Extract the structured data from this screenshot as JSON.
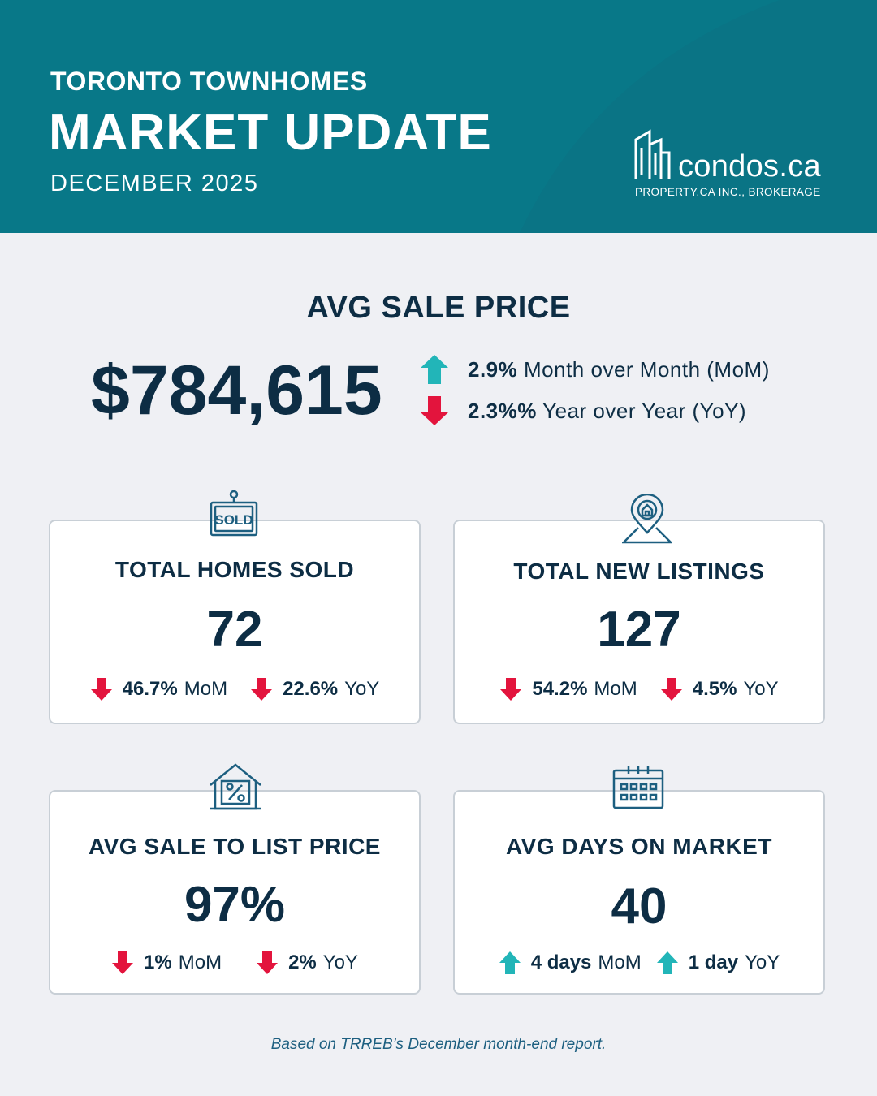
{
  "header": {
    "subtitle": "TORONTO TOWNHOMES",
    "title": "MARKET UPDATE",
    "date": "DECEMBER 2025",
    "bg_color": "#087888"
  },
  "logo": {
    "name": "condos.ca",
    "tagline": "PROPERTY.CA INC., BROKERAGE",
    "icon": "buildings-icon"
  },
  "avg_sale_price": {
    "title": "AVG SALE PRICE",
    "value": "$784,615",
    "mom": {
      "value": "2.9%",
      "label": "Month over Month (MoM)",
      "direction": "up"
    },
    "yoy": {
      "value": "2.3%%",
      "label": "Year over Year (YoY)",
      "direction": "down"
    }
  },
  "colors": {
    "up": "#22b5b8",
    "down": "#e3143d",
    "text": "#0d2d44"
  },
  "cards": {
    "homes_sold": {
      "icon": "sold-sign-icon",
      "title": "TOTAL HOMES SOLD",
      "value": "72",
      "mom": {
        "value": "46.7%",
        "label": "MoM",
        "direction": "down"
      },
      "yoy": {
        "value": "22.6%",
        "label": "YoY",
        "direction": "down"
      }
    },
    "new_listings": {
      "icon": "house-pin-icon",
      "title": "TOTAL NEW LISTINGS",
      "value": "127",
      "mom": {
        "value": "54.2%",
        "label": "MoM",
        "direction": "down"
      },
      "yoy": {
        "value": "4.5%",
        "label": "YoY",
        "direction": "down"
      }
    },
    "sale_to_list": {
      "icon": "house-percent-icon",
      "title": "AVG SALE TO LIST PRICE",
      "value": "97%",
      "mom": {
        "value": "1%",
        "label": "MoM",
        "direction": "down"
      },
      "yoy": {
        "value": "2%",
        "label": "YoY",
        "direction": "down"
      }
    },
    "days_on_market": {
      "icon": "calendar-icon",
      "title": "AVG DAYS ON MARKET",
      "value": "40",
      "mom": {
        "value": "4 days",
        "label": "MoM",
        "direction": "up"
      },
      "yoy": {
        "value": "1 day",
        "label": "YoY",
        "direction": "up"
      }
    }
  },
  "footer": "Based on TRREB’s December month-end report."
}
